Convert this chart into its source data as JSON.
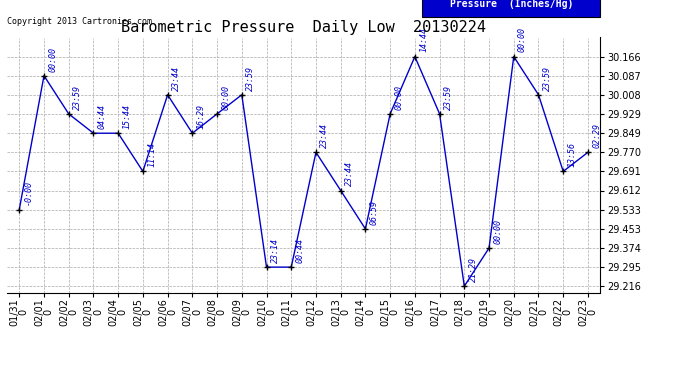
{
  "title": "Barometric Pressure  Daily Low  20130224",
  "ylabel": "Pressure  (Inches/Hg)",
  "copyright": "Copyright 2013 Cartronics.com",
  "line_color": "#0000CC",
  "marker_color": "#000000",
  "background_color": "#ffffff",
  "grid_color": "#aaaaaa",
  "dates": [
    "01/31\n0",
    "02/01\n0",
    "02/02\n0",
    "02/03\n0",
    "02/04\n0",
    "02/05\n0",
    "02/06\n0",
    "02/07\n0",
    "02/08\n0",
    "02/09\n0",
    "02/10\n0",
    "02/11\n0",
    "02/12\n0",
    "02/13\n0",
    "02/14\n0",
    "02/15\n0",
    "02/16\n0",
    "02/17\n0",
    "02/18\n0",
    "02/19\n0",
    "02/20\n0",
    "02/21\n0",
    "02/22\n0",
    "02/23\n0"
  ],
  "values": [
    29.533,
    30.087,
    29.929,
    29.849,
    29.849,
    29.691,
    30.008,
    29.849,
    29.929,
    30.008,
    29.295,
    29.295,
    29.77,
    29.612,
    29.453,
    29.929,
    30.166,
    29.929,
    29.216,
    29.374,
    30.166,
    30.008,
    29.691,
    29.77
  ],
  "point_labels": [
    "-0:00",
    "00:00",
    "23:59",
    "04:44",
    "15:44",
    "11:14",
    "23:44",
    "16:29",
    "00:00",
    "23:59",
    "23:14",
    "00:44",
    "23:44",
    "23:44",
    "06:59",
    "00:00",
    "14:44",
    "23:59",
    "21:29",
    "00:00",
    "00:00",
    "23:59",
    "13:56",
    "02:29"
  ],
  "yticks": [
    29.216,
    29.295,
    29.374,
    29.453,
    29.533,
    29.612,
    29.691,
    29.77,
    29.849,
    29.929,
    30.008,
    30.087,
    30.166
  ],
  "legend_bg": "#0000CC",
  "legend_text_color": "#ffffff",
  "title_fontsize": 11,
  "tick_fontsize": 7,
  "annot_fontsize": 6,
  "copyright_fontsize": 6,
  "legend_fontsize": 7
}
